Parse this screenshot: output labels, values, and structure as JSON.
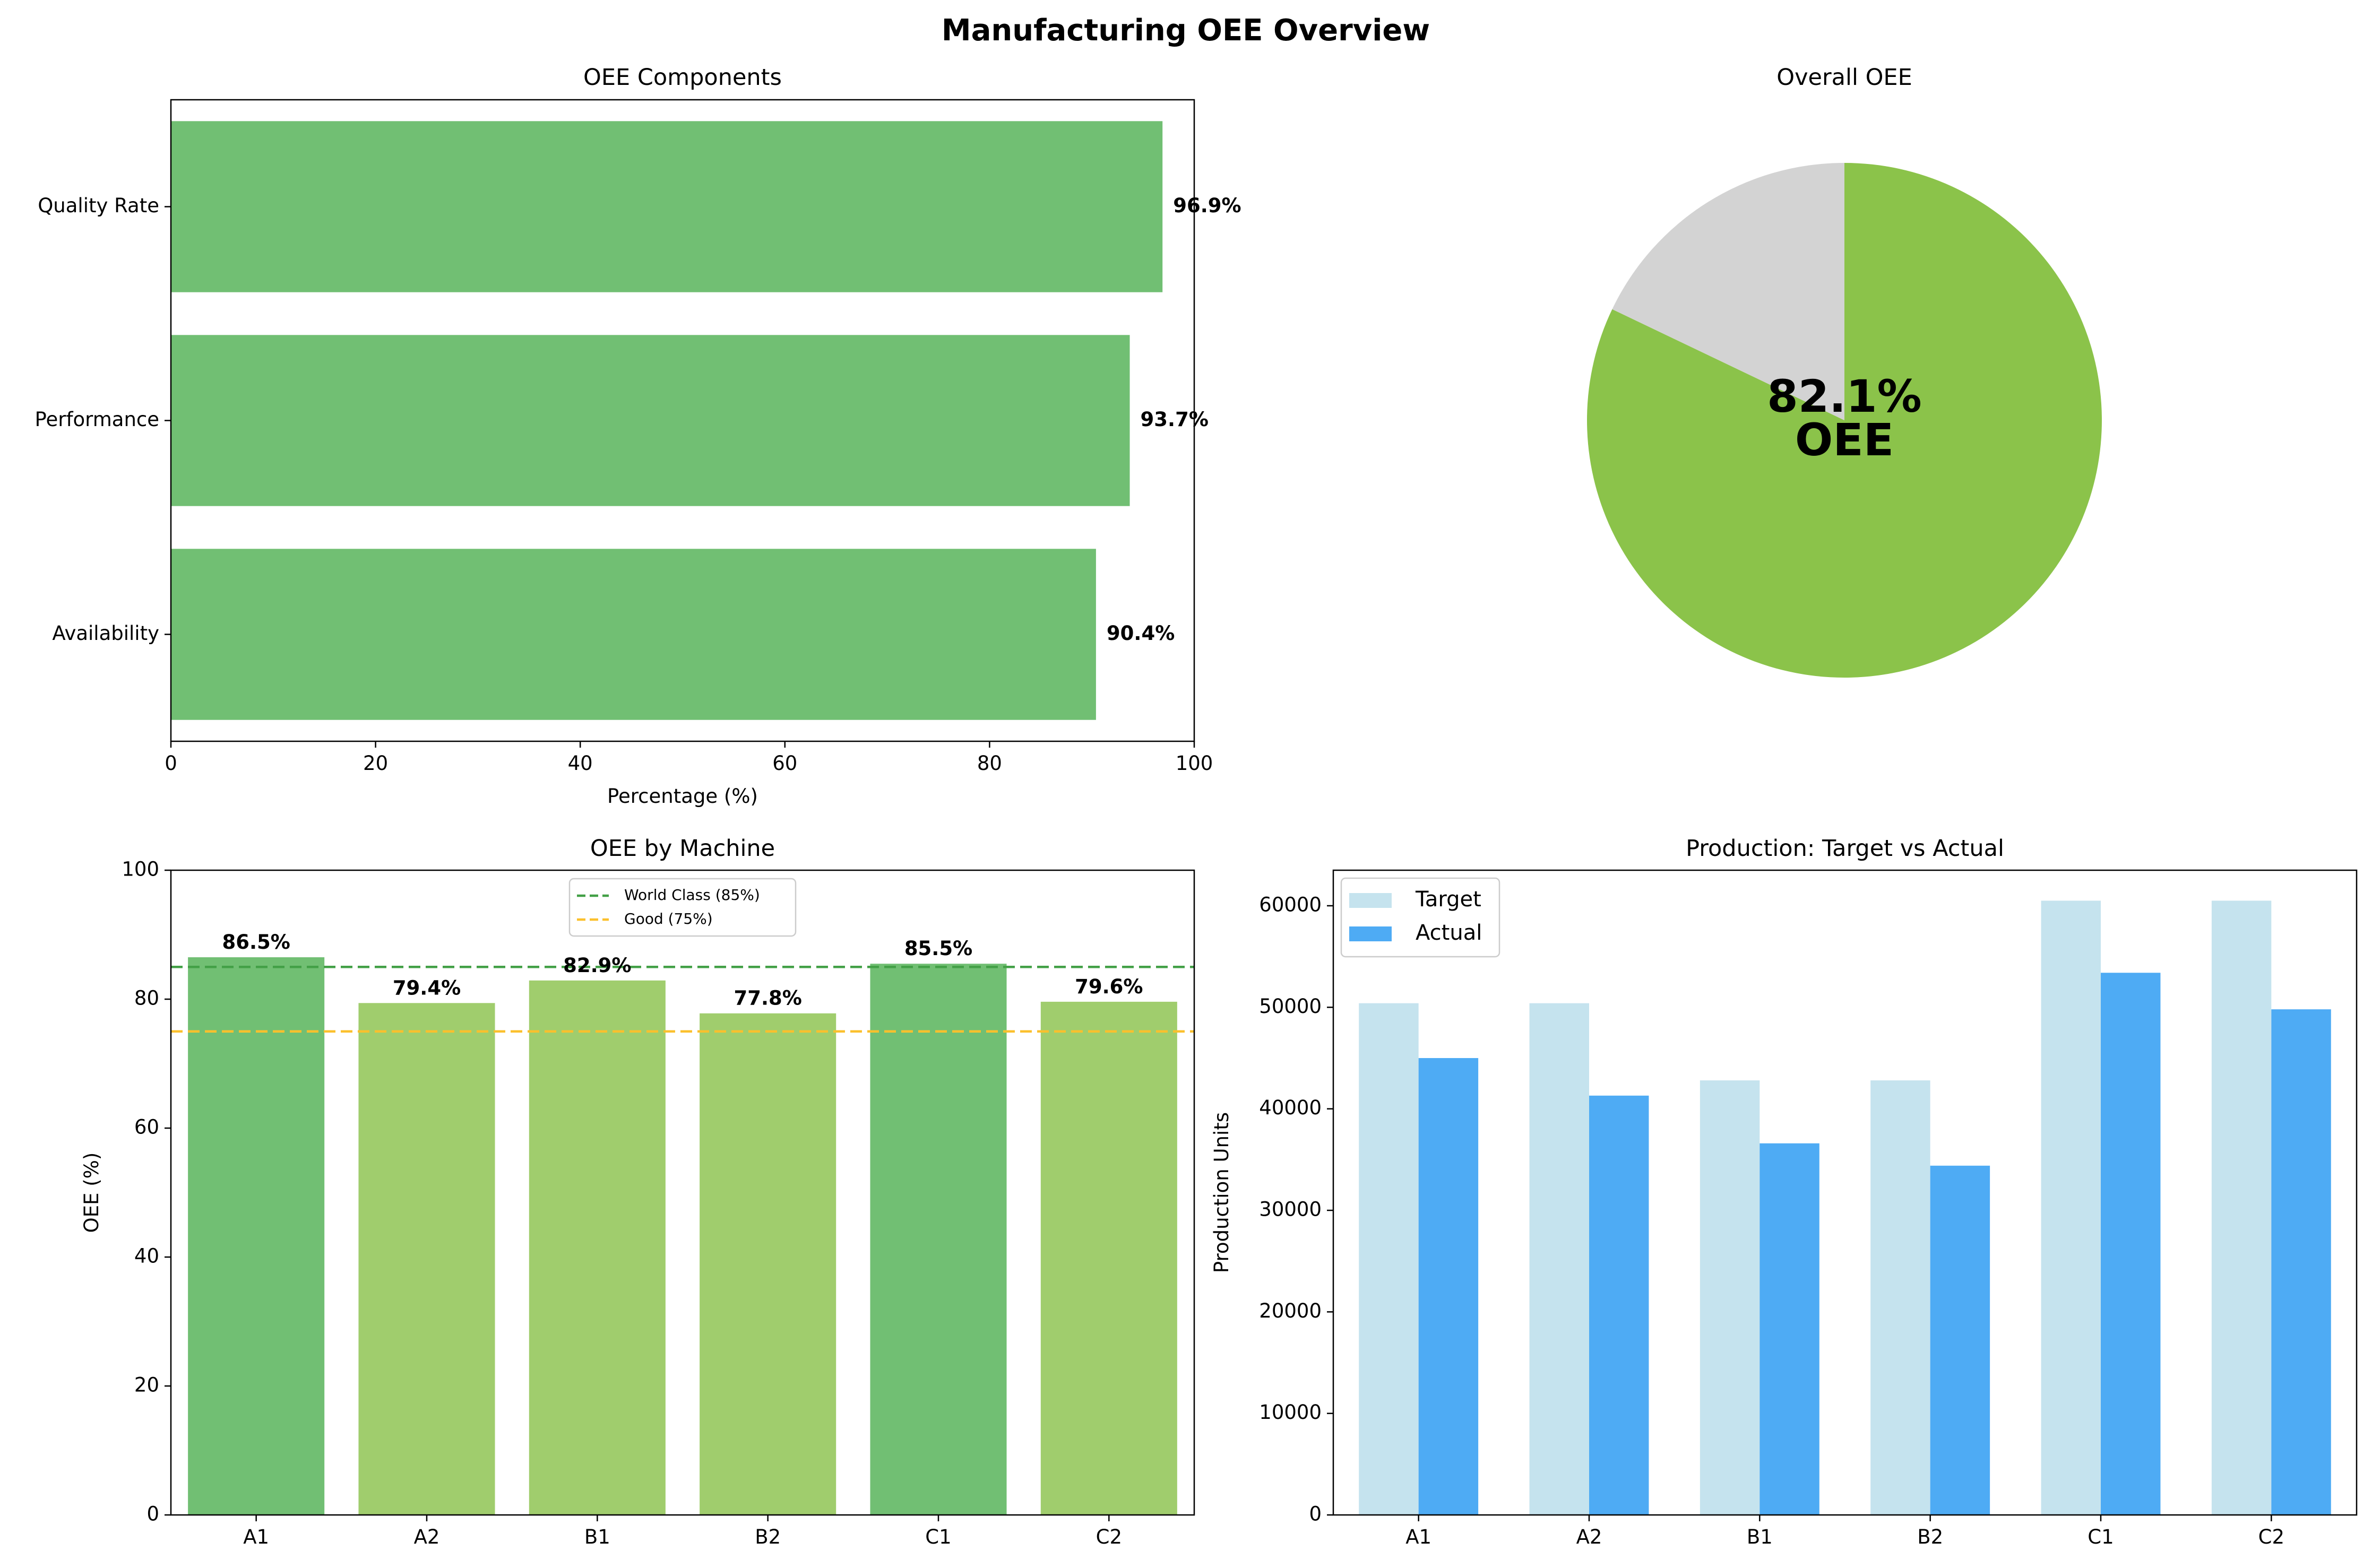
{
  "title": "Manufacturing OEE Overview",
  "colors": {
    "green": "#71bf73",
    "light_green": "#a0cd6d",
    "pie_green": "#8bc34a",
    "pie_gray": "#d3d3d3",
    "world_class_line": "#43a047",
    "good_line": "#fbc02d",
    "target": "#c5e3ee",
    "actual": "#4eabf4"
  },
  "chart_data": [
    {
      "id": "components",
      "type": "bar",
      "orientation": "horizontal",
      "title": "OEE Components",
      "xlabel": "Percentage (%)",
      "ylabel": "",
      "xlim": [
        0,
        100
      ],
      "xticks": [
        "0",
        "20",
        "40",
        "60",
        "80",
        "100"
      ],
      "categories": [
        "Availability",
        "Performance",
        "Quality Rate"
      ],
      "values": [
        90.4,
        93.7,
        96.9
      ],
      "data_labels": [
        "90.4%",
        "93.7%",
        "96.9%"
      ],
      "grid": false
    },
    {
      "id": "overall",
      "type": "pie",
      "title": "Overall OEE",
      "values": [
        82.1,
        17.9
      ],
      "center_label": [
        "82.1%",
        "OEE"
      ],
      "start_angle": "top, clockwise"
    },
    {
      "id": "machines",
      "type": "bar",
      "title": "OEE by Machine",
      "xlabel": "",
      "ylabel": "OEE (%)",
      "ylim": [
        0,
        100
      ],
      "yticks": [
        "0",
        "20",
        "40",
        "60",
        "80",
        "100"
      ],
      "categories": [
        "A1",
        "A2",
        "B1",
        "B2",
        "C1",
        "C2"
      ],
      "values": [
        86.5,
        79.4,
        82.9,
        77.8,
        85.5,
        79.6
      ],
      "data_labels": [
        "86.5%",
        "79.4%",
        "82.9%",
        "77.8%",
        "85.5%",
        "79.6%"
      ],
      "reference_lines": [
        {
          "label": "World Class (85%)",
          "value": 85
        },
        {
          "label": "Good (75%)",
          "value": 75
        }
      ],
      "legend": "top-center",
      "grid": false
    },
    {
      "id": "production",
      "type": "bar",
      "title": "Production: Target vs Actual",
      "xlabel": "",
      "ylabel": "Production Units",
      "ylim": [
        0,
        63500
      ],
      "yticks": [
        "0",
        "10000",
        "20000",
        "30000",
        "40000",
        "50000",
        "60000"
      ],
      "categories": [
        "A1",
        "A2",
        "B1",
        "B2",
        "C1",
        "C2"
      ],
      "series": [
        {
          "name": "Target",
          "values": [
            50400,
            50400,
            42800,
            42800,
            60500,
            60500
          ]
        },
        {
          "name": "Actual",
          "values": [
            45000,
            41300,
            36600,
            34400,
            53400,
            49800
          ]
        }
      ],
      "legend": "top-left",
      "grid": false
    }
  ]
}
